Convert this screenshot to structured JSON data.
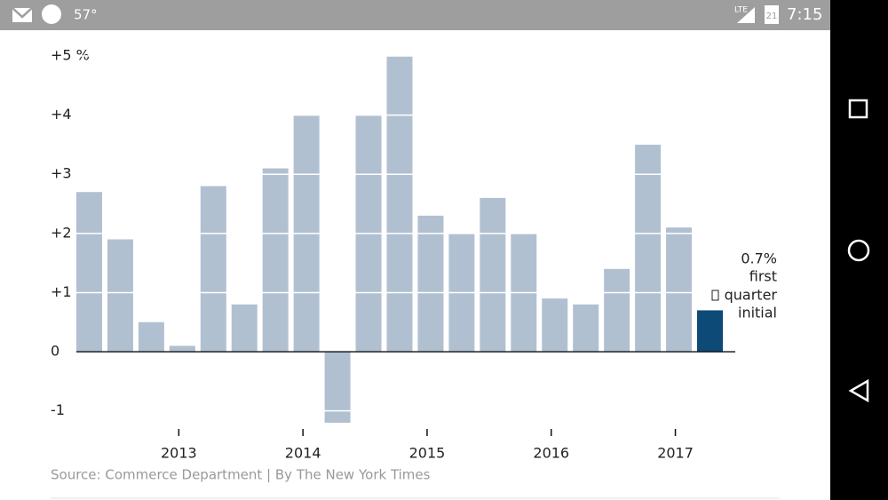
{
  "status_bar": {
    "temperature": "57°",
    "network": "LTE",
    "calendar_day": "21",
    "time": "7:15"
  },
  "chart_data": {
    "type": "bar",
    "categories": [
      null,
      null,
      null,
      "2013",
      null,
      null,
      null,
      "2014",
      null,
      null,
      null,
      "2015",
      null,
      null,
      null,
      "2016",
      null,
      null,
      null,
      "2017",
      null
    ],
    "values": [
      2.7,
      1.9,
      0.5,
      0.1,
      2.8,
      0.8,
      3.1,
      4.0,
      -1.2,
      4.0,
      5.0,
      2.3,
      2.0,
      2.6,
      2.0,
      0.9,
      0.8,
      1.4,
      3.5,
      2.1,
      0.7
    ],
    "colors": [
      "#b1c0d1",
      "#b1c0d1",
      "#b1c0d1",
      "#b1c0d1",
      "#b1c0d1",
      "#b1c0d1",
      "#b1c0d1",
      "#b1c0d1",
      "#b1c0d1",
      "#b1c0d1",
      "#b1c0d1",
      "#b1c0d1",
      "#b1c0d1",
      "#b1c0d1",
      "#b1c0d1",
      "#b1c0d1",
      "#b1c0d1",
      "#b1c0d1",
      "#b1c0d1",
      "#b1c0d1",
      "#0d4a78"
    ],
    "ylim": [
      -1.2,
      5
    ],
    "yticks": [
      {
        "value": 5,
        "label": "+5 %"
      },
      {
        "value": 4,
        "label": "+4"
      },
      {
        "value": 3,
        "label": "+3"
      },
      {
        "value": 2,
        "label": "+2"
      },
      {
        "value": 1,
        "label": "+1"
      },
      0,
      {
        "value": -1,
        "label": "-1"
      }
    ],
    "grid": true,
    "annotation": [
      "0.7%",
      "first",
      "quarter",
      "initial"
    ],
    "source": "Source: Commerce Department | By The New York Times"
  }
}
